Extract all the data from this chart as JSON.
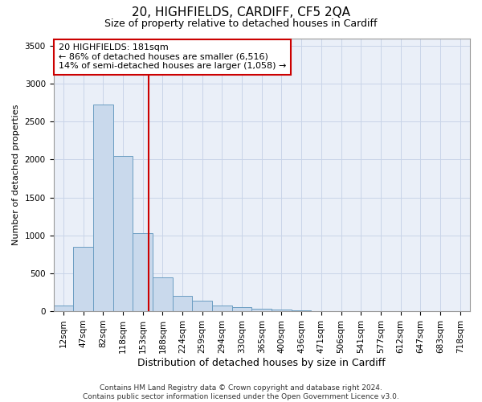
{
  "title": "20, HIGHFIELDS, CARDIFF, CF5 2QA",
  "subtitle": "Size of property relative to detached houses in Cardiff",
  "xlabel": "Distribution of detached houses by size in Cardiff",
  "ylabel": "Number of detached properties",
  "categories": [
    "12sqm",
    "47sqm",
    "82sqm",
    "118sqm",
    "153sqm",
    "188sqm",
    "224sqm",
    "259sqm",
    "294sqm",
    "330sqm",
    "365sqm",
    "400sqm",
    "436sqm",
    "471sqm",
    "506sqm",
    "541sqm",
    "577sqm",
    "612sqm",
    "647sqm",
    "683sqm",
    "718sqm"
  ],
  "bar_values": [
    75,
    850,
    2725,
    2050,
    1025,
    450,
    200,
    140,
    70,
    55,
    35,
    20,
    8,
    5,
    4,
    3,
    2,
    2,
    1,
    1,
    0
  ],
  "bar_color": "#c9d9ec",
  "bar_edgecolor": "#6b9dc2",
  "annotation_text": "20 HIGHFIELDS: 181sqm\n← 86% of detached houses are smaller (6,516)\n14% of semi-detached houses are larger (1,058) →",
  "vline_color": "#cc0000",
  "annotation_box_edgecolor": "#cc0000",
  "ylim": [
    0,
    3600
  ],
  "yticks": [
    0,
    500,
    1000,
    1500,
    2000,
    2500,
    3000,
    3500
  ],
  "grid_color": "#c8d4e8",
  "bg_color": "#eaeff8",
  "footer_text": "Contains HM Land Registry data © Crown copyright and database right 2024.\nContains public sector information licensed under the Open Government Licence v3.0.",
  "title_fontsize": 11,
  "subtitle_fontsize": 9,
  "xlabel_fontsize": 9,
  "ylabel_fontsize": 8,
  "tick_fontsize": 7.5,
  "annotation_fontsize": 8,
  "footer_fontsize": 6.5
}
